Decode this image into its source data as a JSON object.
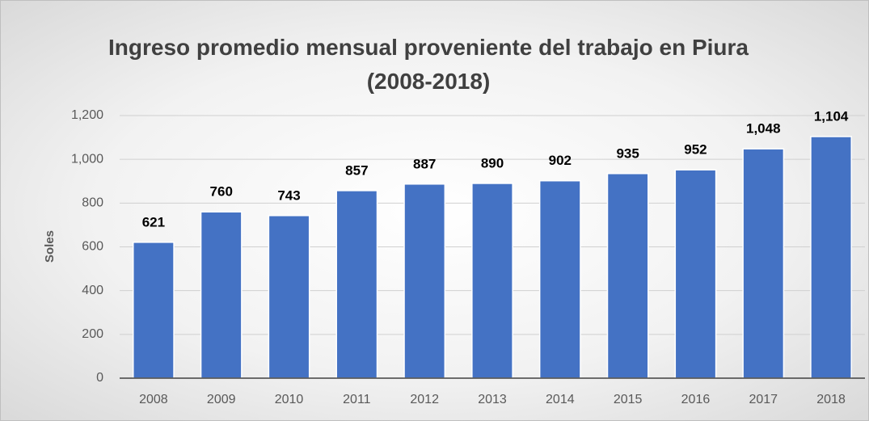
{
  "chart_data": {
    "type": "bar",
    "title": "Ingreso promedio mensual proveniente del trabajo en Piura (2008-2018)",
    "y_label": "Soles",
    "categories": [
      "2008",
      "2009",
      "2010",
      "2011",
      "2012",
      "2013",
      "2014",
      "2015",
      "2016",
      "2017",
      "2018"
    ],
    "values": [
      621,
      760,
      743,
      857,
      887,
      890,
      902,
      935,
      952,
      1048,
      1104
    ],
    "value_labels": [
      "621",
      "760",
      "743",
      "857",
      "887",
      "890",
      "902",
      "935",
      "952",
      "1,048",
      "1,104"
    ],
    "color": "#4472c4",
    "ylim": [
      0,
      1200
    ],
    "yticks": [
      0,
      200,
      400,
      600,
      800,
      {
        "value": 1000,
        "label": "1,000"
      },
      {
        "value": 1200,
        "label": "1,200"
      }
    ],
    "grid": true
  }
}
